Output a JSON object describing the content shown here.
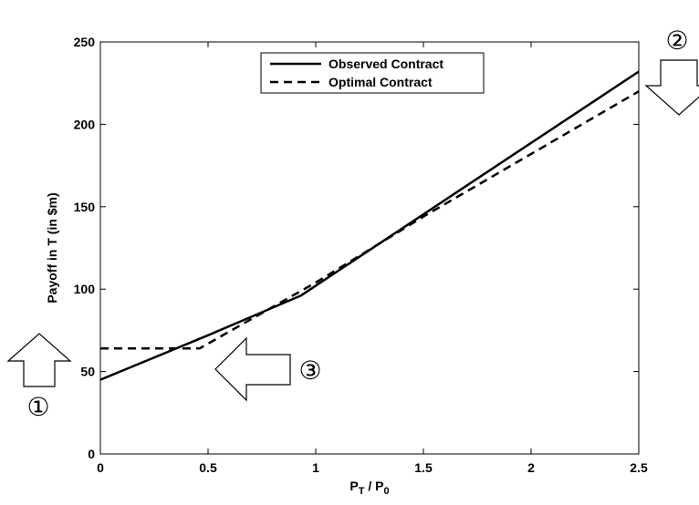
{
  "chart_data": {
    "type": "line",
    "xlabel": "P",
    "xlabel_sub_1": "T",
    "xlabel_mid": " / P",
    "xlabel_sub_2": "0",
    "ylabel": "Payoff in T (in $m)",
    "xlim": [
      0,
      2.5
    ],
    "ylim": [
      0,
      250
    ],
    "xticks": [
      0,
      0.5,
      1,
      1.5,
      2,
      2.5
    ],
    "xtick_labels": [
      "0",
      "0.5",
      "1",
      "1.5",
      "2",
      "2.5"
    ],
    "yticks": [
      0,
      50,
      100,
      150,
      200,
      250
    ],
    "ytick_labels": [
      "0",
      "50",
      "100",
      "150",
      "200",
      "250"
    ],
    "grid": false,
    "legend_position": "top-center",
    "series": [
      {
        "name": "Observed Contract",
        "style": "solid",
        "color": "#000000",
        "x": [
          0,
          0.5,
          0.93,
          2.5
        ],
        "y": [
          45,
          72,
          96,
          232
        ]
      },
      {
        "name": "Optimal Contract",
        "style": "dashed",
        "color": "#000000",
        "x": [
          0,
          0.46,
          1.0,
          1.5,
          2.0,
          2.5
        ],
        "y": [
          64,
          64,
          104,
          144,
          182,
          220
        ]
      }
    ],
    "annotations": [
      {
        "label": "①",
        "arrow": "up"
      },
      {
        "label": "②",
        "arrow": "down"
      },
      {
        "label": "③",
        "arrow": "left"
      }
    ]
  }
}
